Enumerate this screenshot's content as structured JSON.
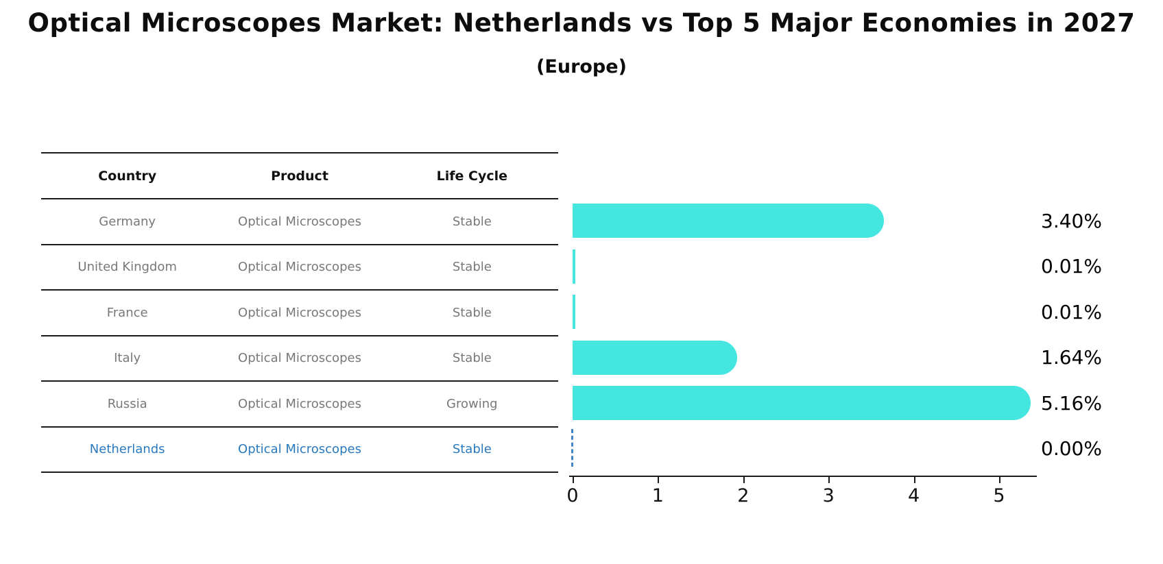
{
  "title": "Optical Microscopes Market: Netherlands vs Top 5 Major Economies in 2027",
  "subtitle": "(Europe)",
  "table": {
    "headers": [
      "Country",
      "Product",
      "Life Cycle"
    ],
    "rows": [
      {
        "country": "Germany",
        "product": "Optical Microscopes",
        "life_cycle": "Stable"
      },
      {
        "country": "United Kingdom",
        "product": "Optical Microscopes",
        "life_cycle": "Stable"
      },
      {
        "country": "France",
        "product": "Optical Microscopes",
        "life_cycle": "Stable"
      },
      {
        "country": "Italy",
        "product": "Optical Microscopes",
        "life_cycle": "Stable"
      },
      {
        "country": "Russia",
        "product": "Optical Microscopes",
        "life_cycle": "Growing"
      },
      {
        "country": "Netherlands",
        "product": "Optical Microscopes",
        "life_cycle": "Stable"
      }
    ]
  },
  "chart_data": {
    "type": "bar",
    "orientation": "horizontal",
    "title": "Optical Microscopes Market: Netherlands vs Top 5 Major Economies in 2027",
    "subtitle": "(Europe)",
    "categories": [
      "Germany",
      "United Kingdom",
      "France",
      "Italy",
      "Russia",
      "Netherlands"
    ],
    "values": [
      3.4,
      0.01,
      0.01,
      1.64,
      5.16,
      0.0
    ],
    "value_labels": [
      "3.40%",
      "0.01%",
      "0.01%",
      "1.64%",
      "5.16%",
      "0.00%"
    ],
    "xticks": [
      "0",
      "1",
      "2",
      "3",
      "4",
      "5"
    ],
    "xlim": [
      0,
      5.43
    ],
    "grid": false,
    "legend": "none",
    "bar_color": "#45e5e0",
    "highlight_text_color": "#2979be",
    "highlight_index": 5,
    "highlight_marker": "dashed-zero-line"
  }
}
